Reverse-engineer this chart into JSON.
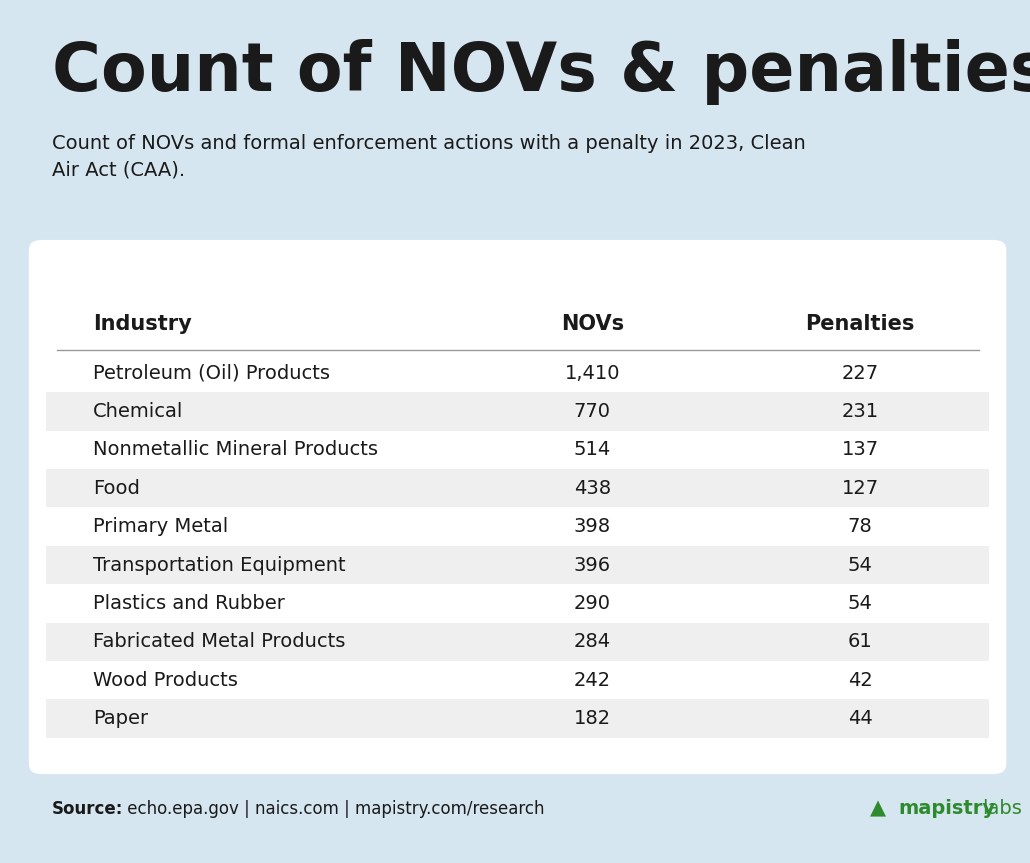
{
  "title": "Count of NOVs & penalties",
  "subtitle": "Count of NOVs and formal enforcement actions with a penalty in 2023, Clean\nAir Act (CAA).",
  "background_color": "#d6e6f0",
  "table_bg": "#ffffff",
  "source_bold": "Source:",
  "source_rest": " echo.epa.gov | naics.com | mapistry.com/research",
  "col_headers": [
    "Industry",
    "NOVs",
    "Penalties"
  ],
  "rows": [
    [
      "Petroleum (Oil) Products",
      "1,410",
      "227"
    ],
    [
      "Chemical",
      "770",
      "231"
    ],
    [
      "Nonmetallic Mineral Products",
      "514",
      "137"
    ],
    [
      "Food",
      "438",
      "127"
    ],
    [
      "Primary Metal",
      "398",
      "78"
    ],
    [
      "Transportation Equipment",
      "396",
      "54"
    ],
    [
      "Plastics and Rubber",
      "290",
      "54"
    ],
    [
      "Fabricated Metal Products",
      "284",
      "61"
    ],
    [
      "Wood Products",
      "242",
      "42"
    ],
    [
      "Paper",
      "182",
      "44"
    ]
  ],
  "stripe_color": "#efefef",
  "text_color": "#1a1a1a",
  "mapistry_green": "#2d8a2d",
  "title_fontsize": 48,
  "subtitle_fontsize": 14,
  "header_fontsize": 15,
  "row_fontsize": 14,
  "source_fontsize": 12
}
